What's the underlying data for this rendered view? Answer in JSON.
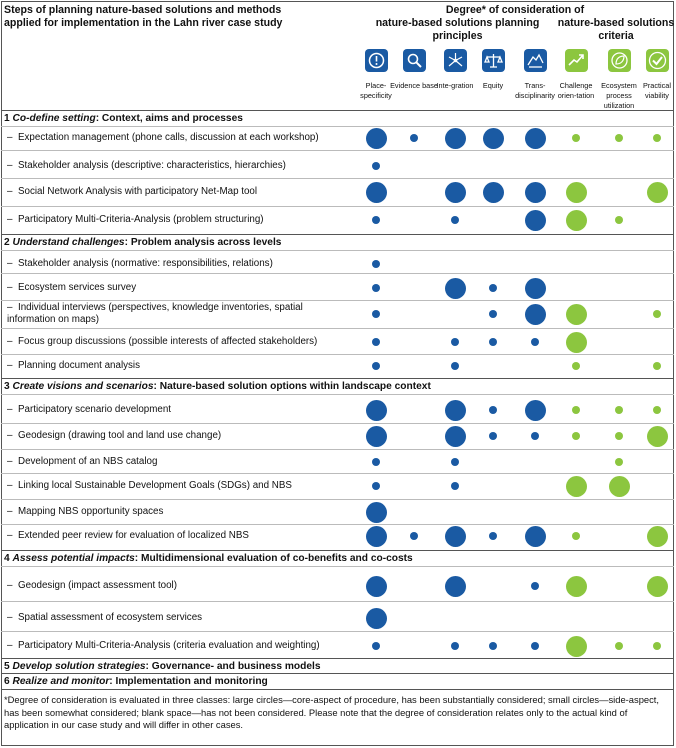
{
  "header": {
    "title": "Steps of planning nature-based solutions and methods applied for implementation in the Lahn river case study",
    "degree_title": "Degree* of consideration of",
    "group_principles": "nature-based solutions planning principles",
    "group_criteria": "nature-based solutions criteria"
  },
  "columns": [
    {
      "label": "Place-specificity",
      "icon": "info-pin-icon",
      "color": "#1a5aa3"
    },
    {
      "label": "Evidence base",
      "icon": "magnifier-icon",
      "color": "#1a5aa3"
    },
    {
      "label": "Inte-gration",
      "icon": "network-icon",
      "color": "#1a5aa3"
    },
    {
      "label": "Equity",
      "icon": "balance-scale-icon",
      "color": "#1a5aa3"
    },
    {
      "label": "Trans-disciplinarity",
      "icon": "hands-icon",
      "color": "#1a5aa3"
    },
    {
      "label": "Challenge orien-tation",
      "icon": "trend-up-icon",
      "color": "#8cc63f"
    },
    {
      "label": "Ecosystem process utilization",
      "icon": "leaf-cycle-icon",
      "color": "#8cc63f"
    },
    {
      "label": "Practical viability",
      "icon": "checkmark-icon",
      "color": "#8cc63f"
    }
  ],
  "legend": {
    "L": "large circle — core-aspect",
    "S": "small circle — side-aspect",
    "": "blank — not considered"
  },
  "sections": [
    {
      "number": "1",
      "title": "Co-define setting",
      "subtitle": ": Context, aims and processes",
      "rows": [
        {
          "label": "Expectation management (phone calls, discussion at each workshop)",
          "degrees": [
            "L",
            "S",
            "L",
            "L",
            "L",
            "S",
            "S",
            "S"
          ]
        },
        {
          "label": "Stakeholder analysis (descriptive: characteristics, hierarchies)",
          "degrees": [
            "S",
            "",
            "",
            "",
            "",
            "",
            "",
            ""
          ]
        },
        {
          "label": "Social Network Analysis with participatory Net-Map tool",
          "degrees": [
            "L",
            "",
            "L",
            "L",
            "L",
            "L",
            "",
            "L"
          ]
        },
        {
          "label": "Participatory Multi-Criteria-Analysis (problem structuring)",
          "degrees": [
            "S",
            "",
            "S",
            "",
            "L",
            "L",
            "S",
            ""
          ]
        }
      ]
    },
    {
      "number": "2",
      "title": "Understand challenges",
      "subtitle": ": Problem analysis across levels",
      "rows": [
        {
          "label": "Stakeholder analysis (normative: responsibilities, relations)",
          "degrees": [
            "S",
            "",
            "",
            "",
            "",
            "",
            "",
            ""
          ]
        },
        {
          "label": "Ecosystem services survey",
          "degrees": [
            "S",
            "",
            "L",
            "S",
            "L",
            "",
            "",
            ""
          ]
        },
        {
          "label": "Individual interviews (perspectives, knowledge inventories, spatial information on maps)",
          "degrees": [
            "S",
            "",
            "",
            "S",
            "L",
            "L",
            "",
            "S"
          ]
        },
        {
          "label": "Focus group discussions (possible interests of affected stakeholders)",
          "degrees": [
            "S",
            "",
            "S",
            "S",
            "S",
            "L",
            "",
            ""
          ]
        },
        {
          "label": "Planning document analysis",
          "degrees": [
            "S",
            "",
            "S",
            "",
            "",
            "S",
            "",
            "S"
          ]
        }
      ]
    },
    {
      "number": "3",
      "title": "Create visions and scenarios",
      "subtitle": ": Nature-based solution options within landscape context",
      "rows": [
        {
          "label": "Participatory scenario development",
          "degrees": [
            "L",
            "",
            "L",
            "S",
            "L",
            "S",
            "S",
            "S"
          ]
        },
        {
          "label": "Geodesign (drawing tool and land use change)",
          "degrees": [
            "L",
            "",
            "L",
            "S",
            "S",
            "S",
            "S",
            "L"
          ]
        },
        {
          "label": "Development of an NBS catalog",
          "degrees": [
            "S",
            "",
            "S",
            "",
            "",
            "",
            "S",
            ""
          ]
        },
        {
          "label": "Linking local Sustainable Development Goals (SDGs) and NBS",
          "degrees": [
            "S",
            "",
            "S",
            "",
            "",
            "L",
            "L",
            ""
          ]
        },
        {
          "label": "Mapping NBS opportunity spaces",
          "degrees": [
            "L",
            "",
            "",
            "",
            "",
            "",
            "",
            ""
          ]
        },
        {
          "label": "Extended peer review for evaluation of localized NBS",
          "degrees": [
            "L",
            "S",
            "L",
            "S",
            "L",
            "S",
            "",
            "L"
          ]
        }
      ]
    },
    {
      "number": "4",
      "title": "Assess potential impacts",
      "subtitle": ": Multidimensional evaluation of co-benefits and co-costs",
      "rows": [
        {
          "label": "Geodesign (impact assessment tool)",
          "degrees": [
            "L",
            "",
            "L",
            "",
            "S",
            "L",
            "",
            "L"
          ]
        },
        {
          "label": "Spatial assessment of ecosystem services",
          "degrees": [
            "L",
            "",
            "",
            "",
            "",
            "",
            "",
            ""
          ]
        },
        {
          "label": "Participatory Multi-Criteria-Analysis (criteria evaluation and weighting)",
          "degrees": [
            "S",
            "",
            "S",
            "S",
            "S",
            "L",
            "S",
            "S"
          ]
        }
      ]
    },
    {
      "number": "5",
      "title": "Develop solution strategies",
      "subtitle": ": Governance- and business models",
      "rows": []
    },
    {
      "number": "6",
      "title": "Realize and monitor",
      "subtitle": ": Implementation and monitoring",
      "rows": []
    }
  ],
  "footnote": "*Degree of consideration is evaluated in three classes: large circles—core-aspect of procedure, has been substantially considered; small circles—side-aspect, has been somewhat considered; blank space—has not been considered. Please note that the degree of consideration relates only to the actual kind of application in our case study and will differ in other cases."
}
